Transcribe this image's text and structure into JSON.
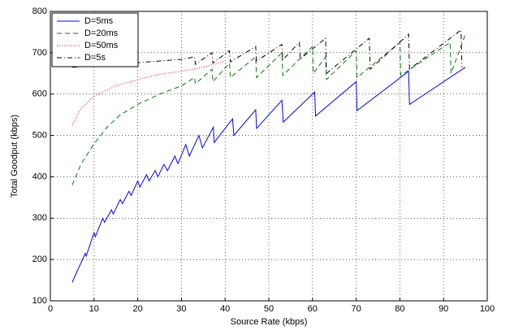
{
  "chart_data": {
    "type": "line",
    "xlabel": "Source Rate (kbps)",
    "ylabel": "Total Goodput (kbps)",
    "xlim": [
      0,
      100
    ],
    "ylim": [
      100,
      800
    ],
    "xticks": [
      0,
      10,
      20,
      30,
      40,
      50,
      60,
      70,
      80,
      90,
      100
    ],
    "yticks": [
      100,
      200,
      300,
      400,
      500,
      600,
      700,
      800
    ],
    "grid": true,
    "legend": "upper left",
    "series": [
      {
        "name": "D=5ms",
        "color": "#0000ff",
        "linestyle": "solid",
        "x": [
          5,
          8,
          8.2,
          10,
          10.3,
          12,
          12.4,
          14,
          14.4,
          16,
          16.5,
          18,
          18.5,
          20,
          20.5,
          22,
          22.6,
          24,
          24.6,
          26,
          26.8,
          28.5,
          29.2,
          31,
          31.8,
          34,
          34.8,
          37.3,
          37.5,
          41.7,
          42,
          47,
          47.2,
          53,
          53.3,
          60.5,
          60.7,
          70,
          70.2,
          82,
          82.2,
          95
        ],
        "values": [
          145,
          215,
          208,
          265,
          255,
          300,
          290,
          320,
          310,
          345,
          335,
          365,
          355,
          390,
          375,
          405,
          390,
          415,
          400,
          430,
          415,
          450,
          432,
          478,
          450,
          500,
          470,
          520,
          483,
          540,
          500,
          562,
          517,
          585,
          532,
          605,
          547,
          630,
          560,
          655,
          575,
          665
        ]
      },
      {
        "name": "D=20ms",
        "color": "#008000",
        "linestyle": "dashed",
        "x": [
          5,
          7,
          10,
          13,
          16,
          20,
          25,
          30,
          33,
          33.2,
          37,
          37.2,
          41,
          41.2,
          47,
          47.2,
          53,
          53.2,
          60,
          60.2,
          63,
          63.2,
          70,
          70.2,
          80,
          80.2,
          91.5,
          91.7,
          95
        ],
        "values": [
          380,
          430,
          480,
          520,
          550,
          575,
          600,
          620,
          640,
          625,
          660,
          630,
          675,
          640,
          690,
          640,
          700,
          645,
          715,
          650,
          690,
          635,
          705,
          640,
          725,
          645,
          725,
          650,
          745
        ]
      },
      {
        "name": "D=50ms",
        "color": "#ff0000",
        "linestyle": "dotted",
        "x": [
          5,
          7,
          10,
          15,
          20,
          25,
          30,
          35,
          40
        ],
        "values": [
          525,
          565,
          595,
          620,
          635,
          648,
          655,
          665,
          680
        ]
      },
      {
        "name": "D=5s",
        "color": "#000000",
        "linestyle": "dashdot",
        "x": [
          5,
          10,
          15,
          20,
          25,
          30,
          33,
          33.2,
          37,
          37.2,
          41,
          41.2,
          47,
          47.2,
          53,
          53.2,
          57,
          57.2,
          63,
          63.2,
          73,
          73.2,
          82,
          82.2,
          94,
          94.2
        ],
        "values": [
          665,
          668,
          672,
          676,
          680,
          684,
          690,
          672,
          700,
          675,
          705,
          678,
          715,
          680,
          720,
          683,
          725,
          685,
          735,
          650,
          735,
          660,
          745,
          660,
          755,
          665
        ]
      }
    ]
  }
}
